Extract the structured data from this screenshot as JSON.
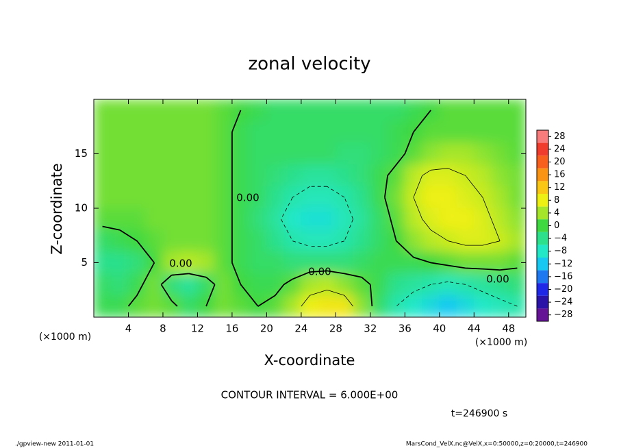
{
  "chart_data": {
    "type": "contour",
    "title": "zonal velocity",
    "xlabel": "X-coordinate",
    "ylabel": "Z-coordinate",
    "x_unit": "(×1000 m)",
    "xlim": [
      0,
      50
    ],
    "ylim": [
      0,
      20
    ],
    "xticks": [
      4,
      8,
      12,
      16,
      20,
      24,
      28,
      32,
      36,
      40,
      44,
      48
    ],
    "yticks": [
      5,
      10,
      15
    ],
    "x": [
      1,
      3,
      5,
      7,
      9,
      11,
      13,
      15,
      17,
      19,
      21,
      23,
      25,
      27,
      29,
      31,
      33,
      35,
      37,
      39,
      41,
      43,
      45,
      47,
      49
    ],
    "y": [
      19,
      17,
      15,
      13,
      11,
      9,
      7,
      5,
      3,
      1
    ],
    "values": [
      [
        2,
        2,
        2,
        2,
        2,
        2,
        2,
        1,
        0,
        -1,
        -2,
        -2,
        -2,
        -2,
        -2,
        -2,
        -2,
        -2,
        -1,
        0,
        1,
        1,
        1,
        1,
        1
      ],
      [
        2,
        2,
        2,
        2,
        2,
        2,
        2,
        1,
        -1,
        -2,
        -2,
        -2,
        -2,
        -2,
        -2,
        -2,
        -2,
        -1,
        0,
        1,
        1,
        1,
        1,
        1,
        1
      ],
      [
        2,
        2,
        2,
        2,
        2,
        2,
        2,
        1,
        -1,
        -2,
        -2,
        -2,
        -2,
        -2,
        -3,
        -3,
        -2,
        -1,
        1,
        3,
        4,
        4,
        3,
        2,
        1
      ],
      [
        2,
        2,
        2,
        2,
        2,
        2,
        2,
        1,
        -1,
        -2,
        -3,
        -4,
        -5,
        -5,
        -4,
        -3,
        -1,
        1,
        5,
        7,
        7,
        6,
        5,
        3,
        2
      ],
      [
        2,
        2,
        2,
        2,
        2,
        2,
        2,
        1,
        -1,
        -2,
        -4,
        -6,
        -7,
        -7,
        -6,
        -4,
        -1,
        2,
        6,
        8,
        8,
        7,
        6,
        4,
        2
      ],
      [
        1,
        1,
        1,
        2,
        2,
        2,
        2,
        1,
        -1,
        -3,
        -5,
        -8,
        -9,
        -9,
        -7,
        -5,
        -2,
        1,
        5,
        7,
        8,
        8,
        7,
        5,
        3
      ],
      [
        -2,
        -1,
        0,
        1,
        2,
        2,
        2,
        1,
        -1,
        -2,
        -4,
        -6,
        -7,
        -7,
        -6,
        -4,
        -2,
        0,
        3,
        5,
        6,
        7,
        7,
        6,
        4
      ],
      [
        -4,
        -4,
        -3,
        0,
        4,
        5,
        4,
        1,
        -1,
        -2,
        -2,
        -3,
        -3,
        -3,
        -3,
        -2,
        -1,
        -1,
        -1,
        0,
        1,
        2,
        2,
        2,
        1
      ],
      [
        -2,
        -3,
        -1,
        2,
        -3,
        -5,
        -2,
        2,
        0,
        -1,
        -1,
        1,
        4,
        5,
        3,
        1,
        -1,
        -4,
        -5,
        -6,
        -7,
        -6,
        -5,
        -4,
        -3
      ],
      [
        -1,
        -1,
        1,
        2,
        1,
        -2,
        0,
        2,
        1,
        0,
        1,
        4,
        8,
        9,
        9,
        3,
        -2,
        -6,
        -8,
        -10,
        -12,
        -10,
        -8,
        -7,
        -6
      ]
    ],
    "contour_levels": [
      -6,
      0,
      6
    ],
    "contour_labels": [
      "0.00",
      "0.00",
      "0.00",
      "0.00"
    ],
    "colorbar": {
      "lim": [
        -30,
        30
      ],
      "ticks": [
        28,
        24,
        20,
        16,
        12,
        8,
        4,
        0,
        {
          "value": -4,
          "label": "−4"
        },
        {
          "value": -8,
          "label": "−8"
        },
        {
          "value": -12,
          "label": "−12"
        },
        {
          "value": -16,
          "label": "−16"
        },
        {
          "value": -20,
          "label": "−20"
        },
        {
          "value": -24,
          "label": "−24"
        },
        {
          "value": -28,
          "label": "−28"
        }
      ],
      "colors": [
        "#f87c7c",
        "#f03c2c",
        "#f8601e",
        "#fa9414",
        "#fac814",
        "#eef014",
        "#a6e62a",
        "#40d840",
        "#2ce08c",
        "#22e8c8",
        "#16c8f2",
        "#1e78f0",
        "#1e28e6",
        "#2a14a8",
        "#661496"
      ]
    },
    "contour_interval": "CONTOUR INTERVAL = 6.000E+00",
    "time_label": "t=246900 s",
    "footer_left": "./gpview-new   2011-01-01",
    "footer_right": "MarsCond_VelX.nc@VelX,x=0:50000,z=0:20000,t=246900"
  }
}
